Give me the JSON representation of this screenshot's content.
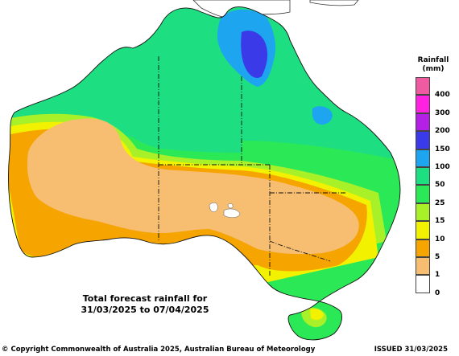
{
  "legend": {
    "title_line1": "Rainfall",
    "title_line2": "(mm)",
    "items": [
      {
        "label": "400",
        "color": "#f05aa0"
      },
      {
        "label": "300",
        "color": "#ff22e0"
      },
      {
        "label": "200",
        "color": "#b420e6"
      },
      {
        "label": "150",
        "color": "#3a3ae8"
      },
      {
        "label": "100",
        "color": "#1ea5ef"
      },
      {
        "label": "50",
        "color": "#1ede82"
      },
      {
        "label": "25",
        "color": "#2be856"
      },
      {
        "label": "15",
        "color": "#a8f028"
      },
      {
        "label": "10",
        "color": "#f2f200"
      },
      {
        "label": "5",
        "color": "#f5a400"
      },
      {
        "label": "1",
        "color": "#f7be72"
      },
      {
        "label": "0",
        "color": "#ffffff"
      }
    ]
  },
  "map_title_line1": "Total forecast rainfall for",
  "map_title_line2": "31/03/2025 to 07/04/2025",
  "footer": {
    "copyright": "© Copyright Commonwealth of Australia 2025, Australian Bureau of Meteorology",
    "issued": "ISSUED 31/03/2025"
  }
}
